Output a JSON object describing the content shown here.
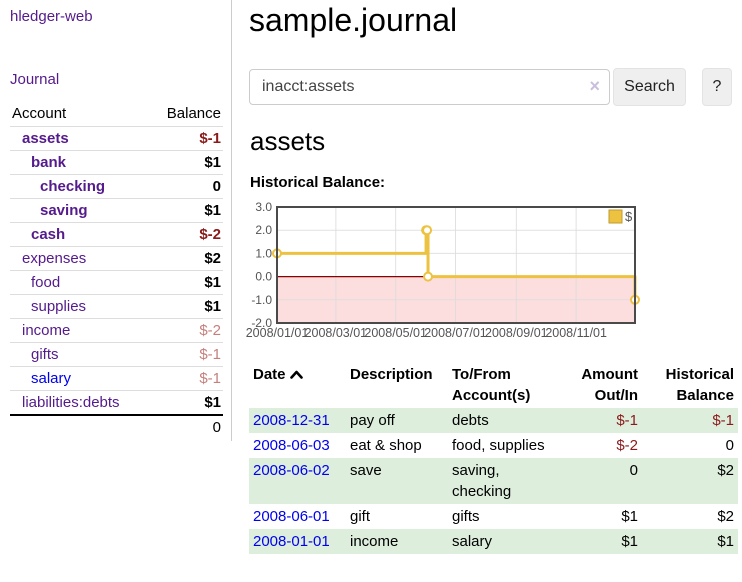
{
  "sidebar": {
    "brand": "hledger-web",
    "journal_label": "Journal",
    "accounts_header": {
      "account": "Account",
      "balance": "Balance"
    },
    "accounts": [
      {
        "name": "assets",
        "level": 1,
        "bold": true,
        "balance": "$-1"
      },
      {
        "name": "bank",
        "level": 2,
        "bold": true,
        "balance": "$1"
      },
      {
        "name": "checking",
        "level": 3,
        "bold": true,
        "balance": "0"
      },
      {
        "name": "saving",
        "level": 3,
        "bold": true,
        "balance": "$1"
      },
      {
        "name": "cash",
        "level": 2,
        "bold": true,
        "balance": "$-2"
      },
      {
        "name": "expenses",
        "level": 1,
        "bold": false,
        "balance": "$2"
      },
      {
        "name": "food",
        "level": 2,
        "bold": false,
        "balance": "$1"
      },
      {
        "name": "supplies",
        "level": 2,
        "bold": false,
        "balance": "$1"
      },
      {
        "name": "income",
        "level": 1,
        "bold": false,
        "balance": "$-2"
      },
      {
        "name": "gifts",
        "level": 2,
        "bold": false,
        "balance": "$-1"
      },
      {
        "name": "salary",
        "level": 2,
        "bold": false,
        "balance": "$-1",
        "unvisited": true
      },
      {
        "name": "liabilities:debts",
        "level": 1,
        "bold": false,
        "balance": "$1"
      }
    ],
    "total": "0"
  },
  "main": {
    "title": "sample.journal",
    "search": {
      "value": "inacct:assets",
      "clear_icon": "×",
      "button_label": "Search",
      "help_label": "?"
    },
    "account_heading": "assets",
    "chart_title": "Historical Balance:"
  },
  "chart_data": {
    "type": "line",
    "step": true,
    "title": "Historical Balance:",
    "series": [
      {
        "name": "$",
        "color": "#EDC240",
        "dates": [
          "2008-01-01",
          "2008-06-01",
          "2008-06-02",
          "2008-06-03",
          "2008-12-31"
        ],
        "x": [
          0.0,
          0.4164,
          0.4192,
          0.4219,
          1.0
        ],
        "values": [
          1,
          2,
          2,
          0,
          -1
        ]
      }
    ],
    "ylim": [
      -2,
      3
    ],
    "yticks": [
      {
        "label": "3.0",
        "value": 3
      },
      {
        "label": "2.0",
        "value": 2
      },
      {
        "label": "1.0",
        "value": 1
      },
      {
        "label": "0.0",
        "value": 0
      },
      {
        "label": "-1.0",
        "value": -1
      },
      {
        "label": "-2.0",
        "value": -2
      }
    ],
    "xticks": [
      {
        "label": "2008/01/01",
        "pos": 0.0
      },
      {
        "label": "2008/03/01",
        "pos": 0.1644
      },
      {
        "label": "2008/05/01",
        "pos": 0.3315
      },
      {
        "label": "2008/07/01",
        "pos": 0.4986
      },
      {
        "label": "2008/09/01",
        "pos": 0.6685
      },
      {
        "label": "2008/11/01",
        "pos": 0.8356
      }
    ],
    "legend": {
      "label": "$",
      "position": "top-right"
    },
    "grid": true,
    "colors": {
      "line": "#EDC240",
      "marker_fill": "#ffffff",
      "negative_region": "#fcdede",
      "zero_line": "#8b0000",
      "gridline": "#dcdcdc",
      "plot_border": "#4a4a4a",
      "tick_text": "#545454",
      "legend_swatch_border": "#bf9b30"
    }
  },
  "register": {
    "headers": {
      "date": "Date",
      "description": "Description",
      "tofrom": "To/From Account(s)",
      "amount": "Amount Out/In",
      "balance": "Historical Balance"
    },
    "sort_icon": "chevron-up",
    "rows": [
      {
        "date": "2008-12-31",
        "description": "pay off",
        "tofrom": "debts",
        "amount": "$-1",
        "balance": "$-1"
      },
      {
        "date": "2008-06-03",
        "description": "eat & shop",
        "tofrom": "food, supplies",
        "amount": "$-2",
        "balance": "0"
      },
      {
        "date": "2008-06-02",
        "description": "save",
        "tofrom": "saving, checking",
        "amount": "0",
        "balance": "$2"
      },
      {
        "date": "2008-06-01",
        "description": "gift",
        "tofrom": "gifts",
        "amount": "$1",
        "balance": "$2"
      },
      {
        "date": "2008-01-01",
        "description": "income",
        "tofrom": "salary",
        "amount": "$1",
        "balance": "$1"
      }
    ]
  }
}
